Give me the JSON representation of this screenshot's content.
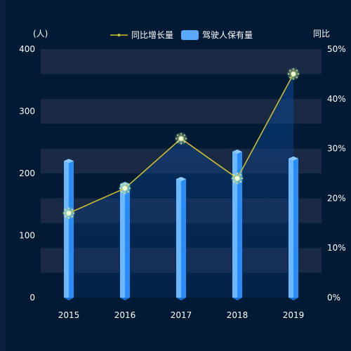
{
  "chart_data": {
    "type": "bar",
    "categories": [
      "2015",
      "2016",
      "2017",
      "2018",
      "2019"
    ],
    "series": [
      {
        "name": "驾驶人保有量",
        "type": "bar",
        "axis": "left",
        "values": [
          220,
          183,
          191,
          235,
          224
        ]
      },
      {
        "name": "同比增长量",
        "type": "line",
        "axis": "right",
        "values": [
          17,
          22,
          32,
          24,
          45
        ]
      }
    ],
    "left_axis": {
      "unit_label": "(人)",
      "ticks": [
        "0",
        "100",
        "200",
        "300",
        "400"
      ],
      "ylim": [
        0,
        400
      ]
    },
    "right_axis": {
      "unit_label": "同比",
      "ticks": [
        "0%",
        "10%",
        "20%",
        "30%",
        "40%",
        "50%"
      ],
      "ylim": [
        0,
        50
      ]
    },
    "legend_position": "top-center",
    "grid": "alternating horizontal bands",
    "colors": {
      "bar": "#2a8cf5",
      "bar_light": "#6bb8ff",
      "line": "#c9bf2f",
      "marker": "#f4ffd2",
      "band": "#1b2a44",
      "text": "#ffffff"
    }
  }
}
